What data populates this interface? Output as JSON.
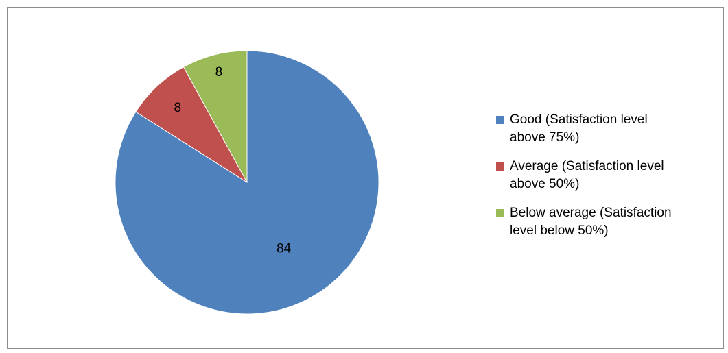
{
  "chart_data": {
    "type": "pie",
    "categories": [
      "Good (Satisfaction level above 75%)",
      "Average (Satisfaction level above 50%)",
      "Below average (Satisfaction level below 50%)"
    ],
    "values": [
      84,
      8,
      8
    ],
    "data_labels": [
      "84",
      "8",
      "8"
    ],
    "colors": [
      "#4f81bd",
      "#c0504d",
      "#9bbb59"
    ],
    "legend_labels": [
      "Good (Satisfaction level\nabove 75%)",
      "Average (Satisfaction level\nabove 50%)",
      "Below average (Satisfaction\nlevel below 50%)"
    ],
    "legend_position": "right",
    "start_angle": "12 o'clock, clockwise"
  }
}
